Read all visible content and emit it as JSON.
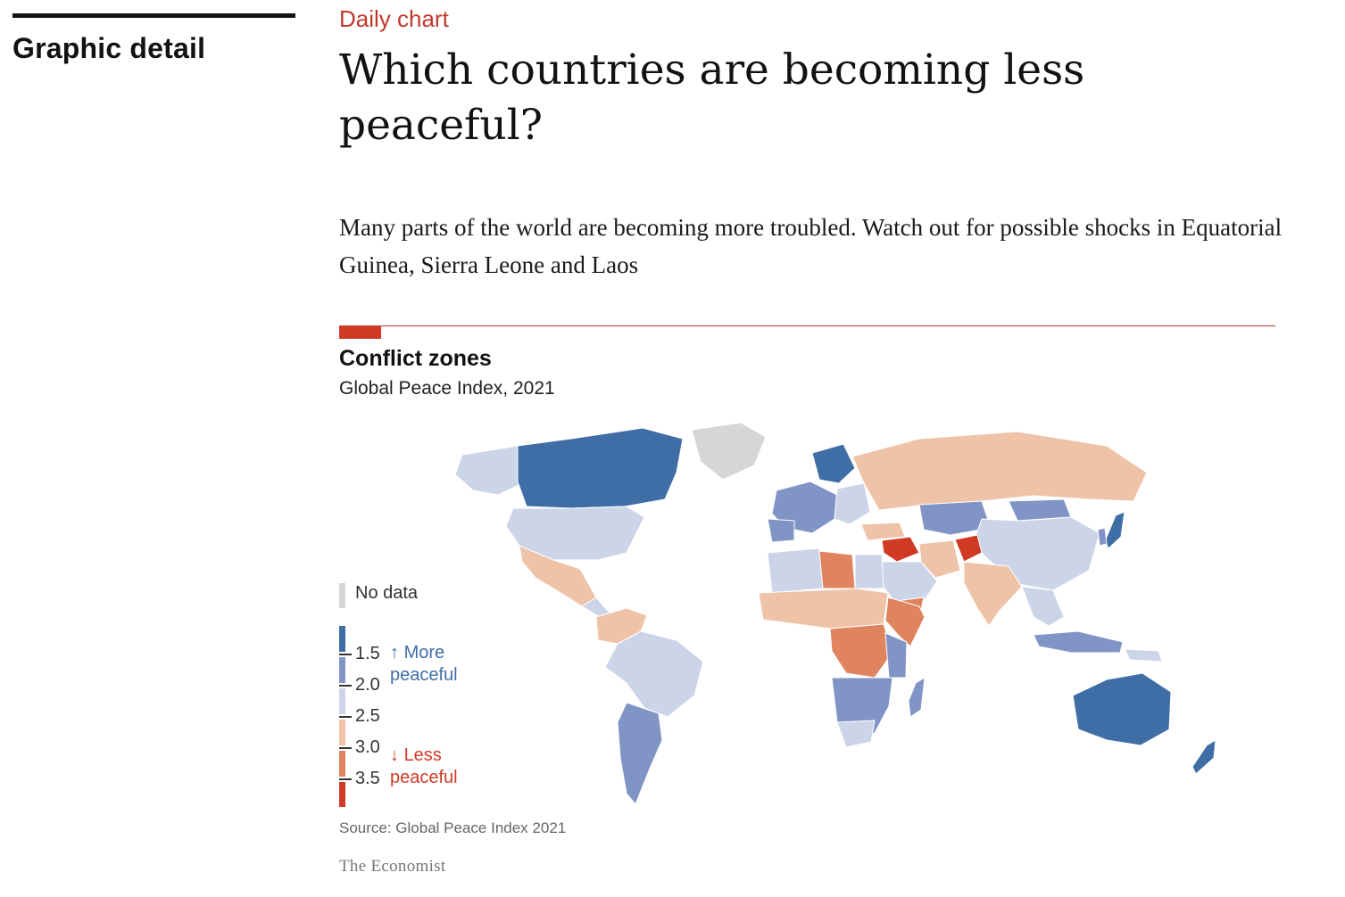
{
  "section": {
    "name": "Graphic detail"
  },
  "article": {
    "kicker": "Daily chart",
    "headline": "Which countries are becoming less peaceful?",
    "standfirst": "Many parts of the world are becoming more troubled. Watch out for possible shocks in Equatorial Guinea, Sierra Leone and Laos"
  },
  "chart": {
    "title": "Conflict zones",
    "subtitle": "Global Peace Index, 2021",
    "source": "Source: Global Peace Index 2021",
    "brand": "The Economist"
  },
  "legend": {
    "no_data_label": "No data",
    "no_data_color": "#d6d6d6",
    "bins": [
      {
        "color": "#3f6ea6"
      },
      {
        "color": "#8094c6"
      },
      {
        "color": "#ccd4e8"
      },
      {
        "color": "#efc3a8"
      },
      {
        "color": "#e0845f"
      },
      {
        "color": "#d03a25"
      }
    ],
    "ticks": [
      "1.5",
      "2.0",
      "2.5",
      "3.0",
      "3.5"
    ],
    "more_peaceful": {
      "arrow": "↑",
      "line1": "More",
      "line2": "peaceful",
      "color": "#3f6ea6"
    },
    "less_peaceful": {
      "arrow": "↓",
      "line1": "Less",
      "line2": "peaceful",
      "color": "#d03a25"
    }
  }
}
